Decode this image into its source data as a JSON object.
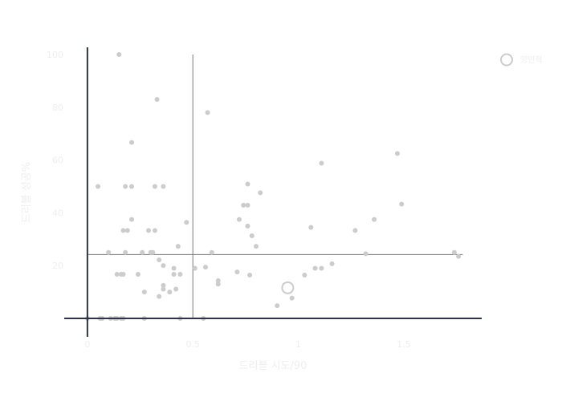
{
  "chart_data": {
    "type": "scatter",
    "xlabel": "드리블 시도/90",
    "ylabel": "드리블 성공%",
    "xlim": [
      -0.11,
      1.87
    ],
    "ylim": [
      -7,
      107
    ],
    "x_ticks": [
      "0",
      "0.5",
      "1",
      "1.5"
    ],
    "x_tick_values": [
      0,
      0.5,
      1,
      1.5
    ],
    "y_ticks": [
      "20",
      "40",
      "60",
      "80",
      "100"
    ],
    "y_tick_values": [
      20,
      40,
      60,
      80,
      100
    ],
    "reference_lines": {
      "x": 0.5,
      "y": 24.2
    },
    "grid": false,
    "legend_position": "top-right",
    "colors": {
      "points": "#cccccc",
      "axis": "#2a3547",
      "ref_line": "#7a7a7a",
      "muted_text": "#eeeeee"
    },
    "series": [
      {
        "role": "others",
        "points": [
          [
            0.15,
            100
          ],
          [
            0.33,
            83
          ],
          [
            0.57,
            78
          ],
          [
            0.21,
            66.7
          ],
          [
            1.11,
            58.8
          ],
          [
            1.47,
            62.5
          ],
          [
            0.05,
            50
          ],
          [
            0.18,
            50
          ],
          [
            0.21,
            50
          ],
          [
            0.32,
            50
          ],
          [
            0.36,
            50
          ],
          [
            0.76,
            50.9
          ],
          [
            0.82,
            47.6
          ],
          [
            0.74,
            42.9
          ],
          [
            0.76,
            42.9
          ],
          [
            1.49,
            43.3
          ],
          [
            0.72,
            37.5
          ],
          [
            0.21,
            37.5
          ],
          [
            0.47,
            36.4
          ],
          [
            1.36,
            37.5
          ],
          [
            0.76,
            35
          ],
          [
            1.06,
            34.5
          ],
          [
            0.17,
            33.3
          ],
          [
            0.19,
            33.3
          ],
          [
            0.29,
            33.3
          ],
          [
            0.32,
            33.3
          ],
          [
            1.27,
            33.3
          ],
          [
            0.78,
            31.3
          ],
          [
            0.43,
            27.3
          ],
          [
            0.8,
            27.3
          ],
          [
            0.1,
            25
          ],
          [
            0.18,
            25
          ],
          [
            0.26,
            25
          ],
          [
            0.3,
            25
          ],
          [
            0.31,
            25
          ],
          [
            0.59,
            25
          ],
          [
            1.32,
            24.5
          ],
          [
            1.74,
            25
          ],
          [
            1.76,
            23.5
          ],
          [
            0.34,
            22.2
          ],
          [
            0.36,
            20
          ],
          [
            1.16,
            20.7
          ],
          [
            0.51,
            19
          ],
          [
            0.56,
            19.4
          ],
          [
            0.41,
            19
          ],
          [
            1.08,
            19
          ],
          [
            1.11,
            19
          ],
          [
            0.14,
            16.7
          ],
          [
            0.16,
            16.7
          ],
          [
            0.17,
            16.7
          ],
          [
            0.24,
            16.7
          ],
          [
            0.41,
            16.7
          ],
          [
            0.44,
            16.7
          ],
          [
            0.71,
            17.6
          ],
          [
            0.77,
            16.4
          ],
          [
            1.03,
            16.4
          ],
          [
            0.62,
            14.3
          ],
          [
            0.62,
            13
          ],
          [
            0.36,
            12.5
          ],
          [
            0.36,
            11.1
          ],
          [
            0.42,
            11.1
          ],
          [
            0.27,
            10
          ],
          [
            0.39,
            10
          ],
          [
            0.34,
            8.3
          ],
          [
            0.97,
            7.7
          ],
          [
            0.9,
            4.8
          ],
          [
            0,
            0
          ],
          [
            0.06,
            0
          ],
          [
            0.07,
            0
          ],
          [
            0.11,
            0
          ],
          [
            0.13,
            0
          ],
          [
            0.14,
            0
          ],
          [
            0.16,
            0
          ],
          [
            0.17,
            0
          ],
          [
            0.27,
            0
          ],
          [
            0.44,
            0
          ],
          [
            0.55,
            0
          ]
        ]
      },
      {
        "name": "양민혁",
        "points": [
          [
            0.95,
            11.6
          ]
        ]
      }
    ]
  }
}
